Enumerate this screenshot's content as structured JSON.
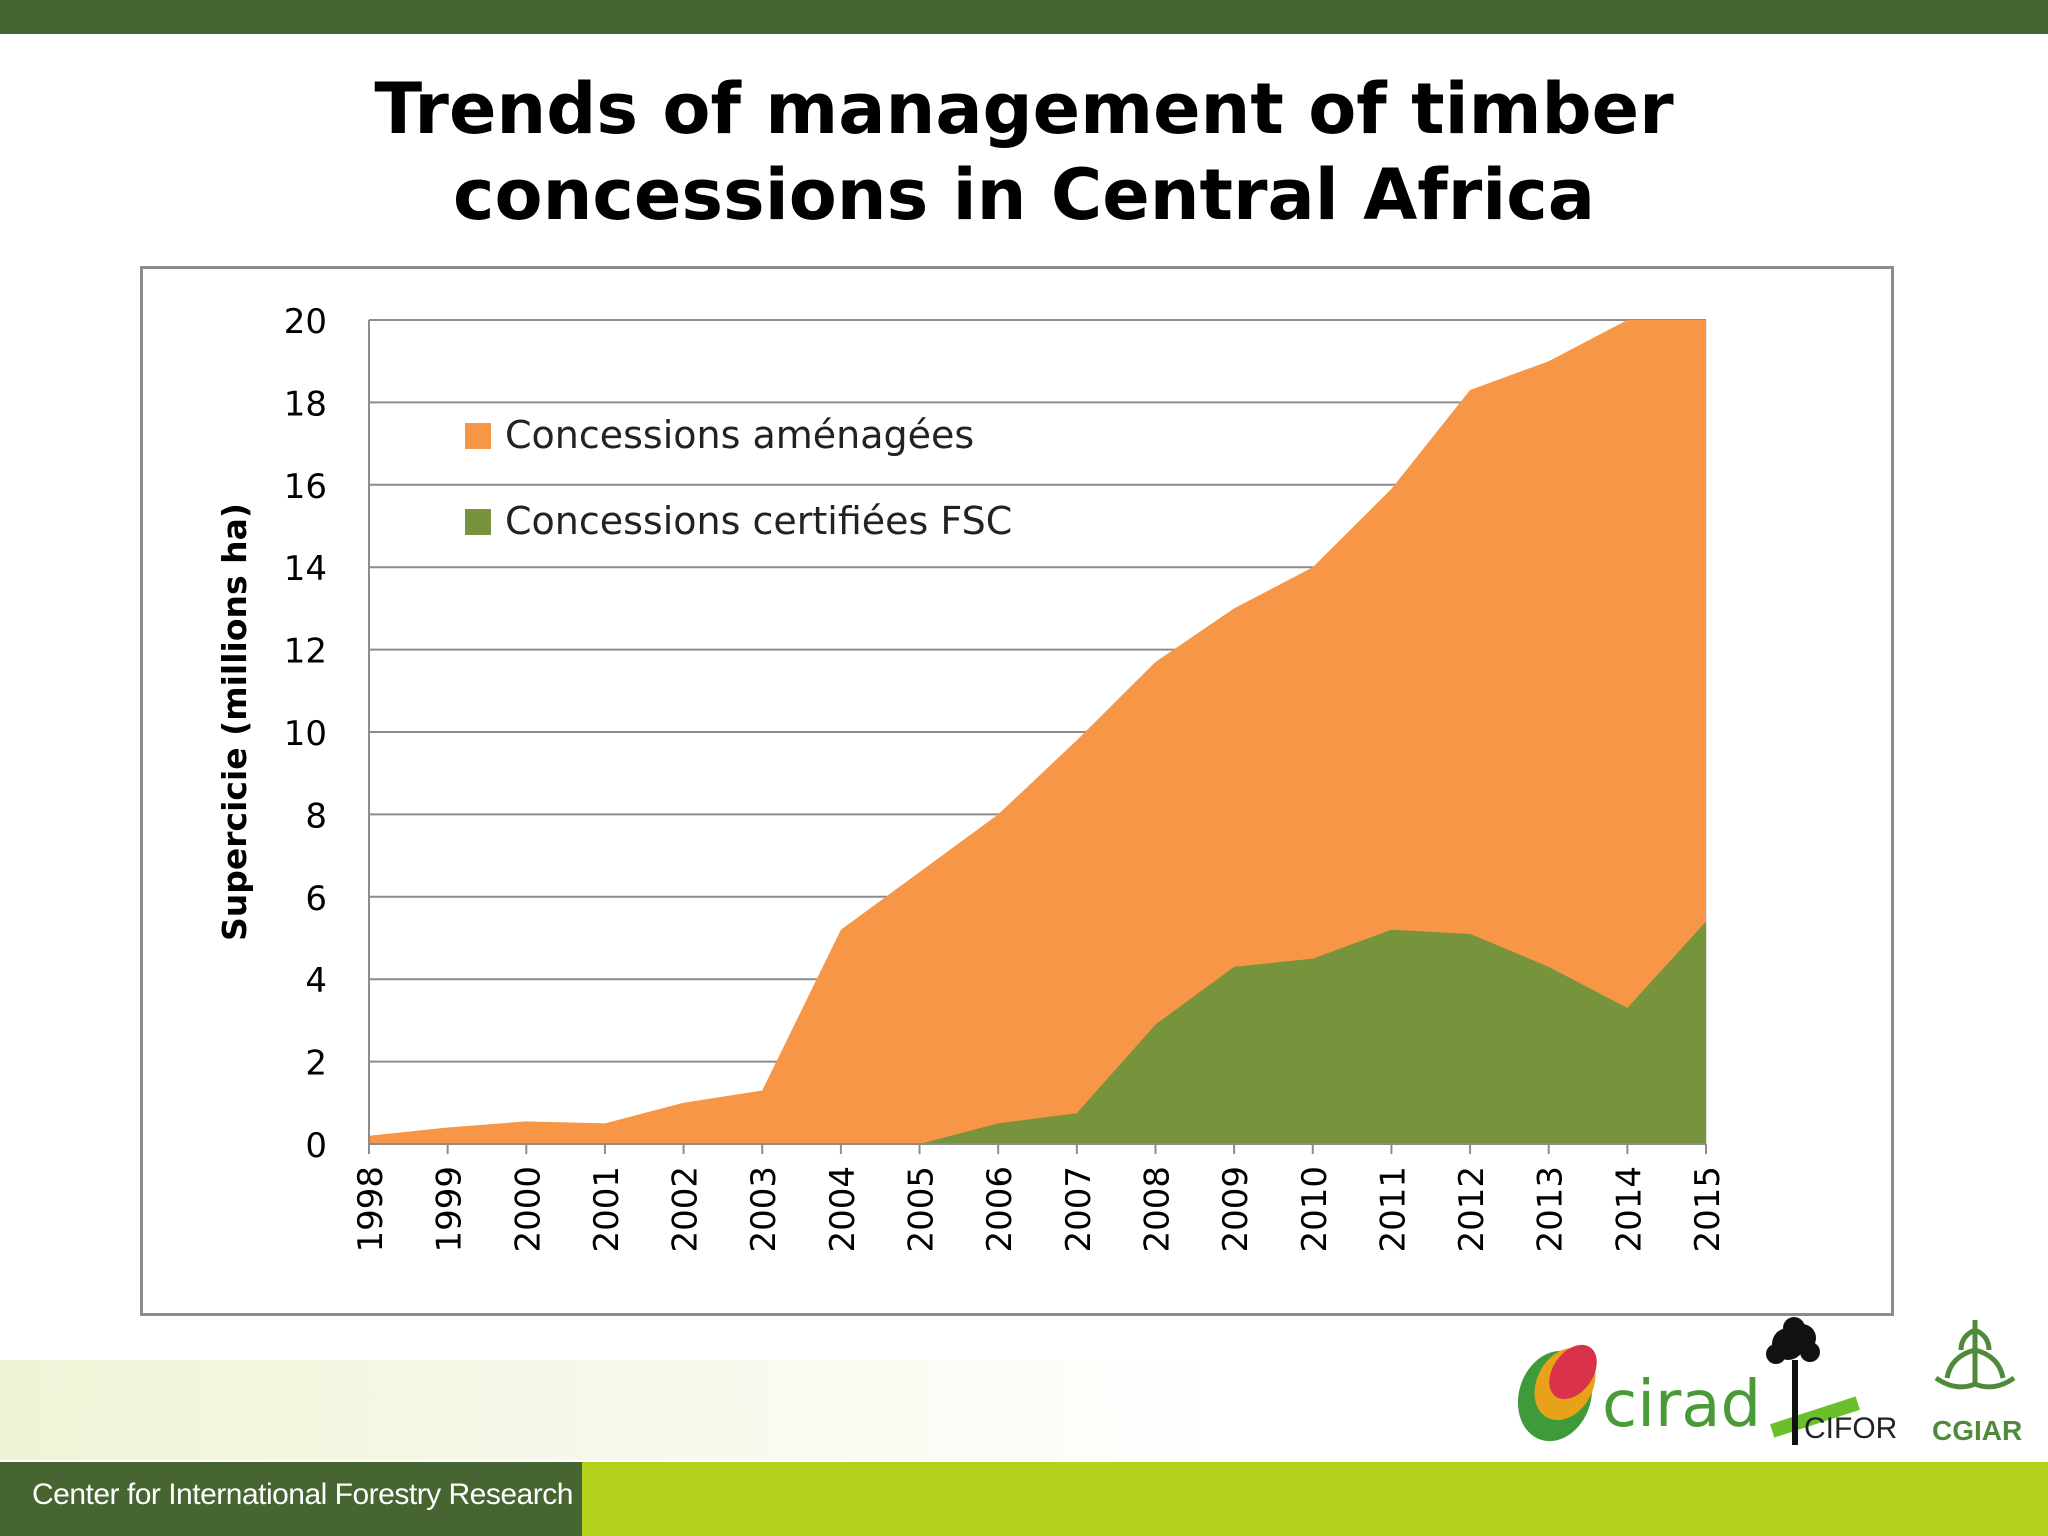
{
  "slide": {
    "title_line1": "Trends of management of timber",
    "title_line2": "concessions in Central Africa",
    "footer_text": "Center for International Forestry Research",
    "logos": {
      "cirad": "cirad",
      "cifor": "CIFOR",
      "cgiar": "CGIAR"
    }
  },
  "colors": {
    "top_bar": "#466530",
    "footer_dark": "#466530",
    "footer_lime": "#b3d11a",
    "managed": "#f79646",
    "fsc": "#77933c"
  },
  "chart_data": {
    "type": "area",
    "title": "",
    "xlabel": "",
    "ylabel": "Supercicie (millions ha)",
    "ylim": [
      0,
      20
    ],
    "yticks": [
      0,
      2,
      4,
      6,
      8,
      10,
      12,
      14,
      16,
      18,
      20
    ],
    "grid": true,
    "legend_position": "top-left",
    "x": [
      "1998",
      "1999",
      "2000",
      "2001",
      "2002",
      "2003",
      "2004",
      "2005",
      "2006",
      "2007",
      "2008",
      "2009",
      "2010",
      "2011",
      "2012",
      "2013",
      "2014",
      "2015"
    ],
    "series": [
      {
        "name": "Concessions aménagées",
        "color": "#f79646",
        "values": [
          0.2,
          0.4,
          0.55,
          0.5,
          1.0,
          1.3,
          5.2,
          6.6,
          8.0,
          9.8,
          11.7,
          13.0,
          14.0,
          15.9,
          18.3,
          19.0,
          20.3,
          20.3
        ]
      },
      {
        "name": "Concessions certifiées FSC",
        "color": "#77933c",
        "values": [
          0,
          0,
          0,
          0,
          0,
          0,
          0,
          0,
          0.5,
          0.75,
          2.9,
          4.3,
          4.5,
          5.2,
          5.1,
          4.3,
          3.3,
          5.4
        ]
      }
    ]
  }
}
